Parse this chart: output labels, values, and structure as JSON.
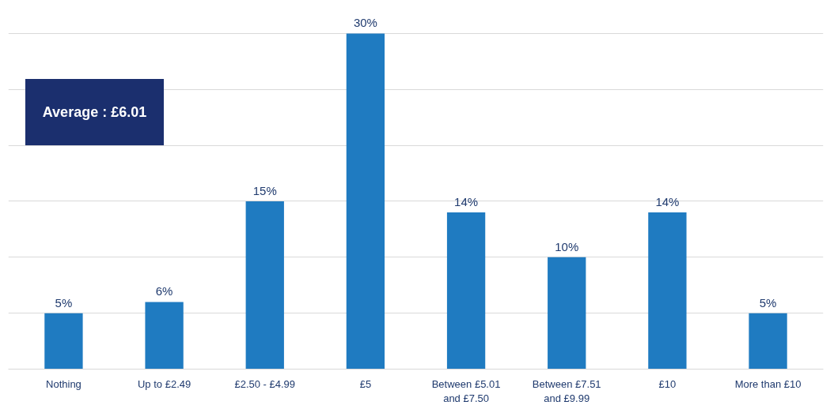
{
  "chart_data": {
    "type": "bar",
    "categories": [
      "Nothing",
      "Up to £2.49",
      "£2.50 - £4.99",
      "£5",
      "Between £5.01 and £7.50",
      "Between £7.51 and £9.99",
      "£10",
      "More than £10"
    ],
    "values": [
      5,
      6,
      15,
      30,
      14,
      10,
      14,
      5
    ],
    "color": "#1f7bc1",
    "data_labels": true,
    "value_labels": [
      "5%",
      "6%",
      "15%",
      "30%",
      "14%",
      "10%",
      "14%",
      "5%"
    ],
    "grid": "y",
    "tick_labels": "x",
    "annotations": [
      "Average : £6.01"
    ]
  }
}
